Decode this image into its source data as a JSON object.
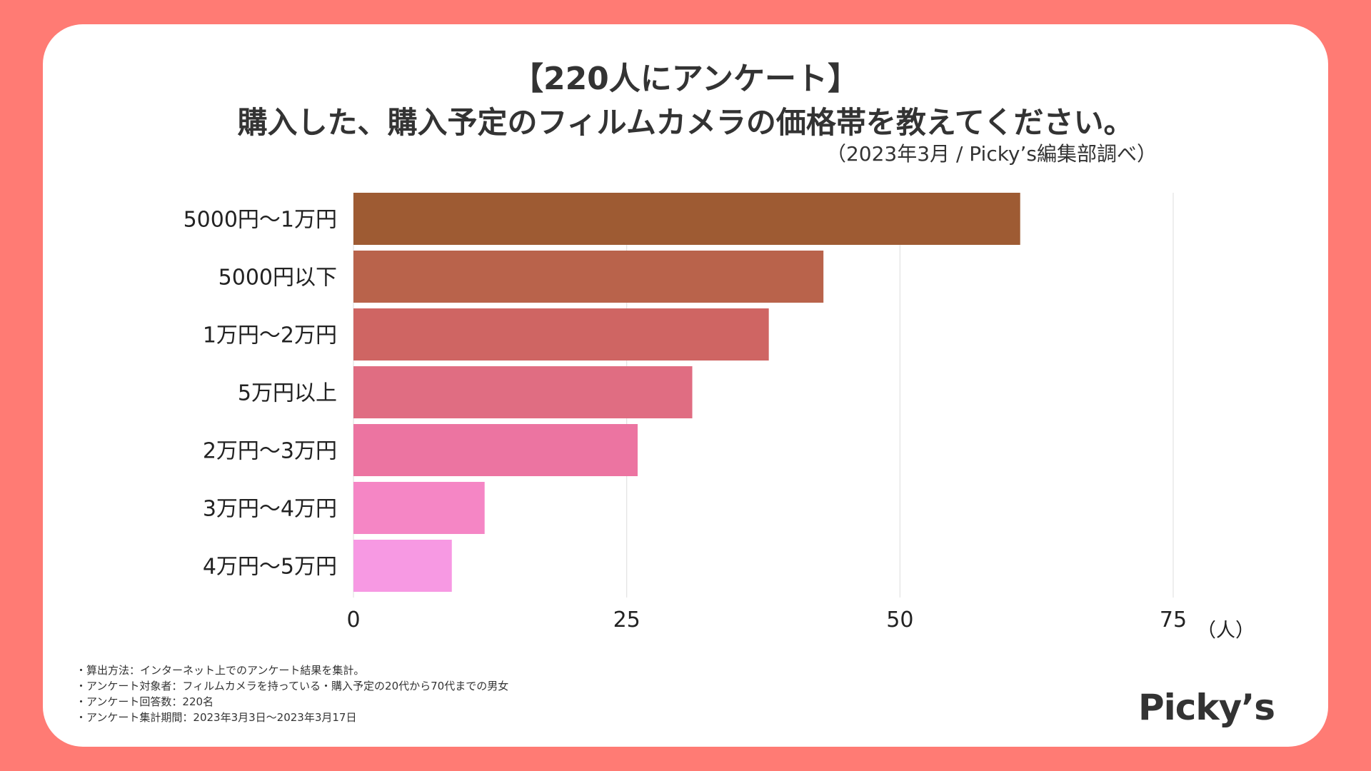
{
  "title_line1": "【220人にアンケート】",
  "title_line2": "購入した、購入予定のフィルムカメラの価格帯を教えてください。",
  "subtitle": "（2023年3月 / Picky’s編集部調べ）",
  "logo": "Picky’s",
  "notes": [
    "・算出方法：インターネット上でのアンケート結果を集計。",
    "・アンケート対象者：フィルムカメラを持っている・購入予定の20代から70代までの男女",
    "・アンケート回答数：220名",
    "・アンケート集計期間：2023年3月3日〜2023年3月17日"
  ],
  "colors": {
    "background": "#ff7b74",
    "bars": [
      "#9e5b33",
      "#b9634b",
      "#cf6563",
      "#e06d82",
      "#ec74a1",
      "#f586c5",
      "#f799e3"
    ]
  },
  "chart_data": {
    "type": "bar",
    "orientation": "horizontal",
    "categories": [
      "5000円〜1万円",
      "5000円以下",
      "1万円〜2万円",
      "5万円以上",
      "2万円〜3万円",
      "3万円〜4万円",
      "4万円〜5万円"
    ],
    "values": [
      61,
      43,
      38,
      31,
      26,
      12,
      9
    ],
    "xlim": [
      0,
      75
    ],
    "xticks": [
      0,
      25,
      50,
      75
    ],
    "xtick_labels": [
      "0",
      "25",
      "50",
      "75"
    ],
    "xlabel": "（人）",
    "ylabel": "",
    "grid": "vertical"
  }
}
